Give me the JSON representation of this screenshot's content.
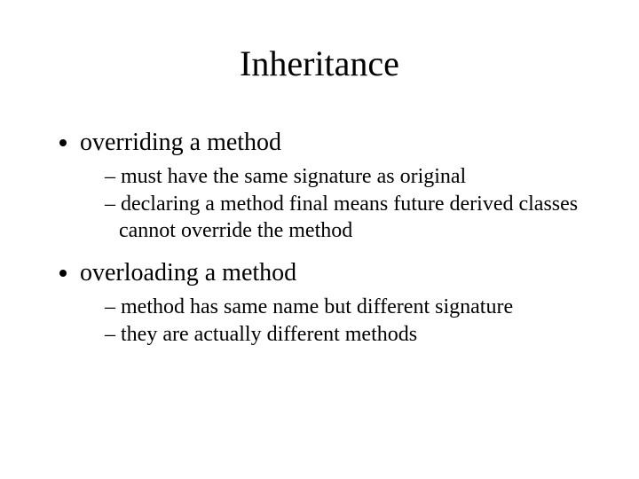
{
  "title": "Inheritance",
  "bullets": [
    {
      "text": "overriding a method",
      "sub": [
        "must have the same signature as original",
        "declaring a method final means future derived classes cannot override the method"
      ]
    },
    {
      "text": "overloading a method",
      "sub": [
        "method has same name but different signature",
        "they are actually different methods"
      ]
    }
  ]
}
